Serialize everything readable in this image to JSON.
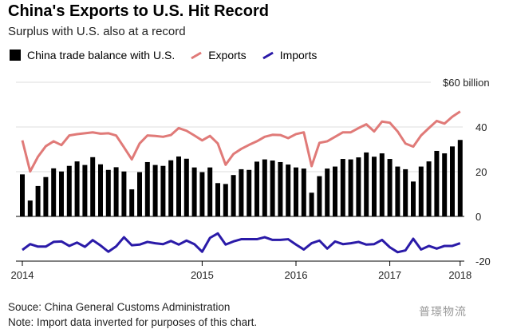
{
  "chart_data": {
    "type": "bar",
    "title": "China's Exports to U.S. Hit Record",
    "subtitle": "Surplus with U.S. also at a record",
    "legend": [
      "China trade balance with U.S.",
      "Exports",
      "Imports"
    ],
    "y_unit_label": "$60 billion",
    "ylim": [
      -20,
      60
    ],
    "yticks": [
      {
        "v": 40,
        "label": "40"
      },
      {
        "v": 20,
        "label": "20"
      },
      {
        "v": 0,
        "label": "0"
      },
      {
        "v": -20,
        "label": "-20"
      }
    ],
    "xticks": [
      {
        "i": 0,
        "label": "2014"
      },
      {
        "i": 23,
        "label": "2015"
      },
      {
        "i": 35,
        "label": "2016"
      },
      {
        "i": 47,
        "label": "2017"
      },
      {
        "i": 56,
        "label": "2018"
      }
    ],
    "series": [
      {
        "name": "China trade balance with U.S.",
        "kind": "bar",
        "color": "#000000",
        "values": [
          18.8,
          7.1,
          13.6,
          17.6,
          21.5,
          20.1,
          22.6,
          24.6,
          23,
          26.5,
          23.3,
          20.8,
          22,
          20.1,
          12.1,
          19.8,
          24.3,
          23,
          22.6,
          25.1,
          26.8,
          25.8,
          21.9,
          19.8,
          21.9,
          14.9,
          14.5,
          18.5,
          21.1,
          20.8,
          24.5,
          25.5,
          25,
          24.3,
          23.2,
          21.9,
          21.4,
          10.6,
          18,
          21.4,
          22.3,
          25.7,
          25.5,
          26.4,
          28.6,
          26.7,
          28.2,
          25.7,
          22.3,
          21.1,
          15.6,
          22.3,
          24.6,
          29.3,
          28.2,
          31.3,
          34.2
        ]
      },
      {
        "name": "Exports",
        "kind": "line",
        "color": "#e07a78",
        "values": [
          34,
          20.1,
          26.7,
          31.4,
          33.6,
          31.9,
          36.2,
          36.8,
          37.2,
          37.6,
          37,
          37.2,
          36.2,
          30.9,
          25.5,
          32.6,
          36.2,
          36,
          35.6,
          36.4,
          39.5,
          38.3,
          36.2,
          34,
          36,
          32.6,
          23.1,
          27.9,
          30.2,
          32,
          33.6,
          35.6,
          36.5,
          36.4,
          35,
          36.8,
          37.6,
          22.5,
          32.9,
          33.6,
          35.6,
          37.6,
          37.6,
          39.5,
          41.2,
          38,
          42.4,
          41.9,
          38,
          32.6,
          31.2,
          36.2,
          39.5,
          42.7,
          41.5,
          44.6,
          46.9
        ]
      },
      {
        "name": "Imports",
        "kind": "line",
        "color": "#2a1aa8",
        "values": [
          -15,
          -12.4,
          -13.5,
          -13.5,
          -11.4,
          -11.2,
          -13.2,
          -11.7,
          -13.6,
          -10.6,
          -13,
          -15.8,
          -13.4,
          -9.3,
          -12.9,
          -12.6,
          -11.4,
          -12,
          -12.4,
          -11,
          -12.6,
          -10.8,
          -12.4,
          -15.8,
          -9.6,
          -7.6,
          -12.6,
          -11.2,
          -10.2,
          -10.2,
          -10.2,
          -9.3,
          -10.5,
          -10.5,
          -10.2,
          -12.6,
          -14.8,
          -12,
          -10.8,
          -14.4,
          -11.2,
          -12.4,
          -12,
          -11.4,
          -12.6,
          -12.4,
          -10.5,
          -13.8,
          -16,
          -15.2,
          -10,
          -14.8,
          -13.2,
          -14.4,
          -13.2,
          -13.2,
          -12
        ]
      }
    ]
  },
  "footer": {
    "source": "Souce: China General Customs Administration",
    "note": "Note: Import data inverted for purposes of this chart.",
    "watermark": "普璟物流"
  }
}
